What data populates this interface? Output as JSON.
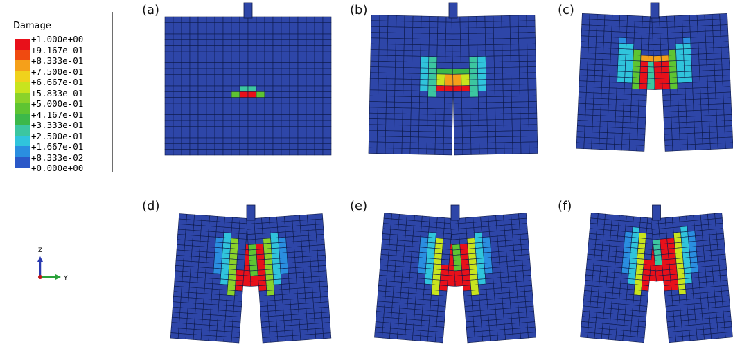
{
  "legend": {
    "title": "Damage",
    "entries": [
      {
        "label": "+1.000e+00",
        "color": "#e8101a"
      },
      {
        "label": "+9.167e-01",
        "color": "#f04a10"
      },
      {
        "label": "+8.333e-01",
        "color": "#f5a01a"
      },
      {
        "label": "+7.500e-01",
        "color": "#f0d21c"
      },
      {
        "label": "+6.667e-01",
        "color": "#c8e41e"
      },
      {
        "label": "+5.833e-01",
        "color": "#8ad22a"
      },
      {
        "label": "+5.000e-01",
        "color": "#5ec432"
      },
      {
        "label": "+4.167e-01",
        "color": "#3cb84a"
      },
      {
        "label": "+3.333e-01",
        "color": "#3cc6a0"
      },
      {
        "label": "+2.500e-01",
        "color": "#30c4dc"
      },
      {
        "label": "+1.667e-01",
        "color": "#2a8ee0"
      },
      {
        "label": "+8.333e-02",
        "color": "#2a58c8"
      },
      {
        "label": "+0.000e+00",
        "color": "#2b44a6"
      }
    ]
  },
  "panels": [
    {
      "label": "(a)"
    },
    {
      "label": "(b)"
    },
    {
      "label": "(c)"
    },
    {
      "label": "(d)"
    },
    {
      "label": "(e)"
    },
    {
      "label": "(f)"
    }
  ],
  "triad": {
    "z_label": "Z",
    "y_label": "Y"
  },
  "colors": {
    "mesh_base": "#2e46a8",
    "mesh_line": "#0d1a4a"
  }
}
